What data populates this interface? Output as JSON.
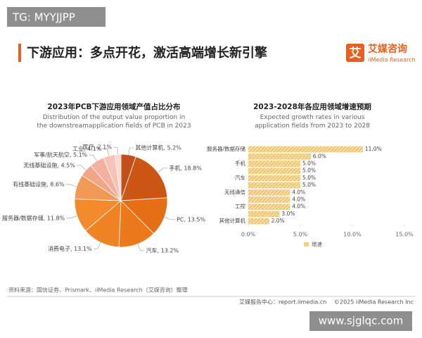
{
  "watermark_top": "TG: MYYJJPP",
  "header": {
    "title": "下游应用：多点开花，激活高端增长新引擎",
    "logo_icon": "艾",
    "logo_name": "艾媒咨询",
    "logo_sub": "iiMedia Research"
  },
  "chart_data": [
    {
      "type": "pie",
      "title": "2023年PCB下游应用领域产值占比分布",
      "subtitle": "Distribution of the output value proportion in the downstreamapplication fields of PCB in 2023",
      "values": [
        5.2,
        18.8,
        13.5,
        13.2,
        13.1,
        11.8,
        8.6,
        4.5,
        5.1,
        4.1,
        2.1
      ],
      "value_labels": [
        "其他计算机, 5.2%",
        "手机, 18.8%",
        "PC, 13.5%",
        "汽车, 13.2%",
        "消费电子, 13.1%",
        "服务器/数据存储, 11.8%",
        "有线基础设施, 8.6%",
        "无线基础设施, 4.5%",
        "军事/航天航空, 5.1%",
        "工业, 4.1%",
        "医疗, 2.1%"
      ],
      "colors": [
        "#c24f19",
        "#cc5715",
        "#e46f17",
        "#ec7a1d",
        "#f08323",
        "#f28b2d",
        "#f19a58",
        "#f2a587",
        "#f3b09d",
        "#f6c4b6",
        "#f9d9cf"
      ]
    },
    {
      "type": "hbar",
      "title": "2023-2028年各应用领域增速预期",
      "subtitle": "Expected growth rates in various application fields from 2023 to 2028",
      "categories": [
        "服务器/数据存储",
        null,
        "手机",
        null,
        "汽车",
        null,
        "无线通信",
        null,
        "工控",
        null,
        "其他计算机"
      ],
      "series": [
        {
          "name": "增速",
          "color": "#f3cf7e",
          "values": [
            11.0,
            6.0,
            5.0,
            5.0,
            5.0,
            5.0,
            4.0,
            4.0,
            4.0,
            3.0,
            2.0
          ],
          "value_labels": [
            "11.0%",
            "6.0%",
            "5.0%",
            "5.0%",
            "5.0%",
            "5.0%",
            "4.0%",
            "4.0%",
            "4.0%",
            "3.0%",
            "2.0%"
          ]
        }
      ],
      "xlim": [
        0,
        15
      ],
      "xticks": [
        {
          "value": 0,
          "label": "0.0%"
        },
        {
          "value": 5,
          "label": "5.0%"
        },
        {
          "value": 10,
          "label": "10.0%"
        },
        {
          "value": 15,
          "label": "15.0%"
        }
      ]
    }
  ],
  "footer": {
    "source": "资料来源：国信证券、Prismark、iiMedia Research（艾媒咨询）整理",
    "left": "艾媒报告中心：report.iimedia.cn",
    "right": "©2025  iiMedia Research  Inc"
  },
  "watermark_bottom": "www.sjglqc.com"
}
